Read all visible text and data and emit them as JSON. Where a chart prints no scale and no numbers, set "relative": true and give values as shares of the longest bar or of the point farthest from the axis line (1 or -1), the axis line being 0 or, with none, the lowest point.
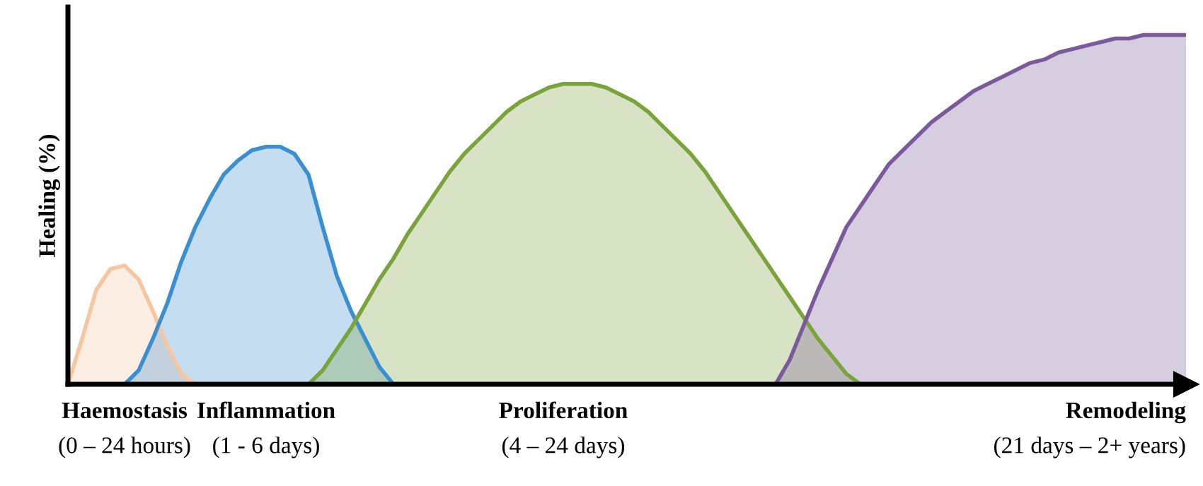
{
  "chart_data": {
    "type": "area",
    "relative": true,
    "ylabel": "Healing (%)",
    "legend": false,
    "categories": [
      null,
      null,
      null,
      null,
      null,
      null,
      null,
      null,
      null,
      null,
      null,
      null,
      null,
      null,
      null,
      null,
      null,
      null,
      null,
      null,
      null,
      null,
      null,
      null,
      null,
      null,
      null,
      null,
      null,
      null,
      null,
      null,
      null,
      null,
      null,
      null,
      null,
      null,
      null,
      null,
      null,
      null,
      null,
      null,
      null,
      null,
      null,
      null,
      null,
      null,
      null,
      null,
      null,
      null,
      null,
      null,
      null,
      null,
      null,
      null,
      null,
      null,
      null,
      null,
      null,
      null,
      null,
      null,
      null,
      null,
      null,
      null,
      null,
      null,
      null,
      null,
      null,
      null,
      null,
      null
    ],
    "series": [
      {
        "name": "Haemostasis\n(0 – 24 hours)",
        "color": "#f5c6a0",
        "values": [
          0,
          0.13,
          0.27,
          0.33,
          0.34,
          0.3,
          0.21,
          0.11,
          0.03,
          0,
          null,
          null,
          null,
          null,
          null,
          null,
          null,
          null,
          null,
          null,
          null,
          null,
          null,
          null,
          null,
          null,
          null,
          null,
          null,
          null,
          null,
          null,
          null,
          null,
          null,
          null,
          null,
          null,
          null,
          null,
          null,
          null,
          null,
          null,
          null,
          null,
          null,
          null,
          null,
          null,
          null,
          null,
          null,
          null,
          null,
          null,
          null,
          null,
          null,
          null,
          null,
          null,
          null,
          null,
          null,
          null,
          null,
          null,
          null,
          null,
          null,
          null,
          null,
          null,
          null,
          null,
          null,
          null,
          null,
          null
        ]
      },
      {
        "name": "Inflammation\n(1 - 6 days)",
        "color": "#3b8fd0",
        "values": [
          null,
          null,
          null,
          null,
          0,
          0.04,
          0.13,
          0.23,
          0.35,
          0.45,
          0.53,
          0.6,
          0.64,
          0.67,
          0.68,
          0.68,
          0.66,
          0.6,
          0.45,
          0.31,
          0.21,
          0.13,
          0.05,
          0,
          null,
          null,
          null,
          null,
          null,
          null,
          null,
          null,
          null,
          null,
          null,
          null,
          null,
          null,
          null,
          null,
          null,
          null,
          null,
          null,
          null,
          null,
          null,
          null,
          null,
          null,
          null,
          null,
          null,
          null,
          null,
          null,
          null,
          null,
          null,
          null,
          null,
          null,
          null,
          null,
          null,
          null,
          null,
          null,
          null,
          null,
          null,
          null,
          null,
          null,
          null,
          null,
          null,
          null,
          null,
          null
        ]
      },
      {
        "name": "Proliferation\n(4 – 24 days)",
        "color": "#7aa33c",
        "values": [
          null,
          null,
          null,
          null,
          null,
          null,
          null,
          null,
          null,
          null,
          null,
          null,
          null,
          null,
          null,
          null,
          null,
          0,
          0.04,
          0.1,
          0.16,
          0.23,
          0.3,
          0.36,
          0.43,
          0.49,
          0.55,
          0.61,
          0.66,
          0.7,
          0.74,
          0.78,
          0.81,
          0.83,
          0.85,
          0.86,
          0.86,
          0.86,
          0.85,
          0.83,
          0.81,
          0.78,
          0.74,
          0.7,
          0.66,
          0.61,
          0.55,
          0.49,
          0.43,
          0.37,
          0.31,
          0.25,
          0.19,
          0.13,
          0.08,
          0.03,
          0,
          null,
          null,
          null,
          null,
          null,
          null,
          null,
          null,
          null,
          null,
          null,
          null,
          null,
          null,
          null,
          null,
          null,
          null,
          null,
          null,
          null,
          null,
          null
        ]
      },
      {
        "name": "Remodeling\n(21 days – 2+ years)",
        "color": "#7b5a9c",
        "values": [
          null,
          null,
          null,
          null,
          null,
          null,
          null,
          null,
          null,
          null,
          null,
          null,
          null,
          null,
          null,
          null,
          null,
          null,
          null,
          null,
          null,
          null,
          null,
          null,
          null,
          null,
          null,
          null,
          null,
          null,
          null,
          null,
          null,
          null,
          null,
          null,
          null,
          null,
          null,
          null,
          null,
          null,
          null,
          null,
          null,
          null,
          null,
          null,
          null,
          null,
          0,
          0.07,
          0.17,
          0.27,
          0.36,
          0.45,
          0.51,
          0.57,
          0.63,
          0.67,
          0.71,
          0.75,
          0.78,
          0.81,
          0.84,
          0.86,
          0.88,
          0.9,
          0.92,
          0.93,
          0.95,
          0.96,
          0.97,
          0.98,
          0.99,
          0.99,
          1,
          1,
          1,
          1
        ]
      }
    ]
  }
}
